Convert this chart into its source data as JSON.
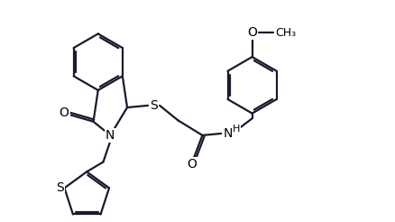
{
  "bg_color": "#ffffff",
  "line_color": "#1a1a2e",
  "lw": 1.6,
  "fs": 9,
  "figsize": [
    4.39,
    2.46
  ],
  "dpi": 100,
  "xlim": [
    0,
    10
  ],
  "ylim": [
    0,
    5.6
  ]
}
